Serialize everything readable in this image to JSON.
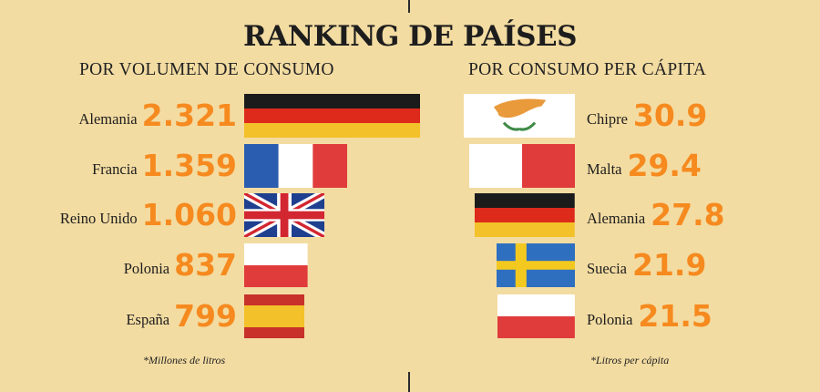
{
  "title": "RANKING DE PAÍSES",
  "colors": {
    "background": "#f3dca2",
    "value": "#f68a1f",
    "text": "#1d1d1d"
  },
  "left": {
    "subtitle": "POR VOLUMEN DE CONSUMO",
    "footnote": "*Millones de litros"
  },
  "right": {
    "subtitle": "POR CONSUMO PER CÁPITA",
    "footnote": "*Litros per cápita"
  },
  "chart_data": [
    {
      "type": "bar",
      "title": "POR VOLUMEN DE CONSUMO",
      "unit": "*Millones de litros",
      "categories": [
        "Alemania",
        "Francia",
        "Reino Unido",
        "Polonia",
        "España"
      ],
      "labels": [
        "2.321",
        "1.359",
        "1.060",
        "837",
        "799"
      ],
      "values": [
        2321,
        1359,
        1060,
        837,
        799
      ],
      "flags": [
        "flag-germany",
        "flag-france",
        "flag-uk",
        "flag-poland",
        "flag-spain"
      ],
      "orientation": "horizontal",
      "bar_style": "country flags"
    },
    {
      "type": "bar",
      "title": "POR CONSUMO PER CÁPITA",
      "unit": "*Litros per cápita",
      "categories": [
        "Chipre",
        "Malta",
        "Alemania",
        "Suecia",
        "Polonia"
      ],
      "labels": [
        "30.9",
        "29.4",
        "27.8",
        "21.9",
        "21.5"
      ],
      "values": [
        30.9,
        29.4,
        27.8,
        21.9,
        21.5
      ],
      "flags": [
        "flag-cyprus",
        "flag-malta",
        "flag-germany",
        "flag-sweden",
        "flag-poland"
      ],
      "orientation": "horizontal",
      "bar_style": "country flags"
    }
  ]
}
